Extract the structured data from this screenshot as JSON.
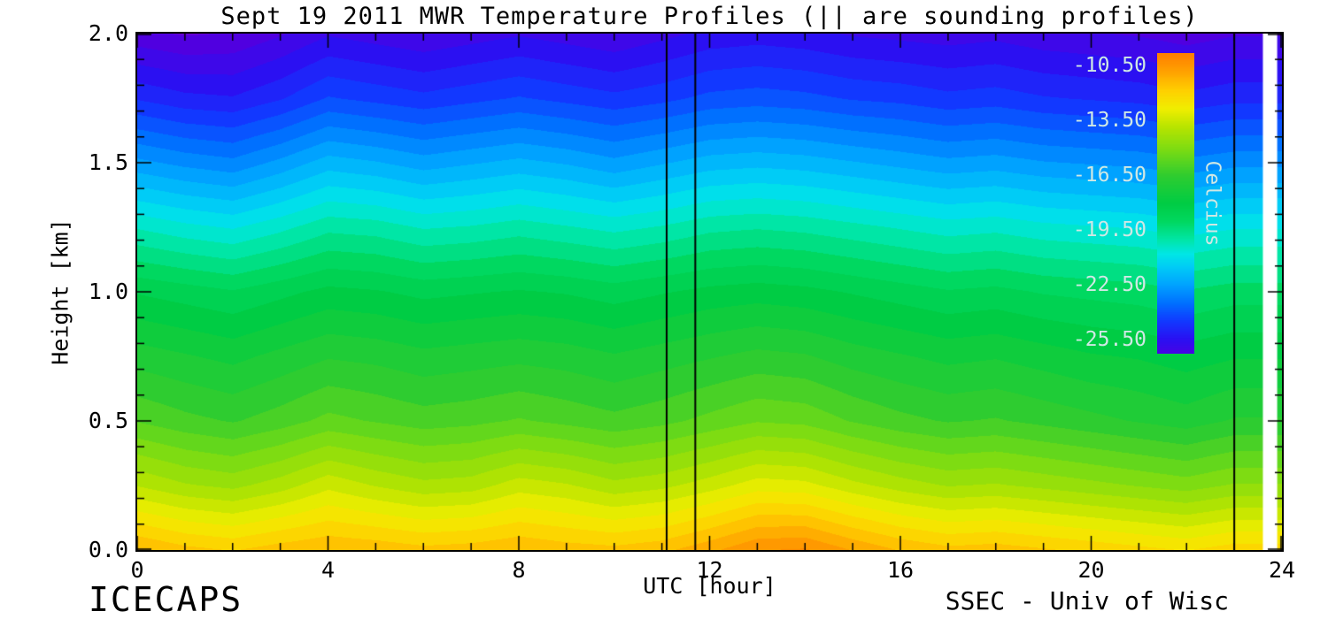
{
  "title": "Sept 19 2011 MWR Temperature Profiles (|| are sounding profiles)",
  "xlabel": "UTC [hour]",
  "ylabel": "Height [km]",
  "footer_left": "ICECAPS",
  "footer_right": "SSEC - Univ of Wisc",
  "axes": {
    "x_ticks": [
      0,
      4,
      8,
      12,
      16,
      20,
      24
    ],
    "x_minor_step": 1,
    "x_range": [
      0,
      24
    ],
    "y_ticks": [
      "0.0",
      "0.5",
      "1.0",
      "1.5",
      "2.0"
    ],
    "y_minor_step": 0.1,
    "y_range": [
      0,
      2
    ]
  },
  "sounding_hours": [
    11.1,
    11.7,
    23.0
  ],
  "no_data_band": {
    "from": 23.6,
    "to": 23.9
  },
  "colorbar": {
    "label": "Celcius",
    "tick_labels": [
      "-10.50",
      "-13.50",
      "-16.50",
      "-19.50",
      "-22.50",
      "-25.50"
    ],
    "min": -26.25,
    "max": -9.75,
    "text_color": "#cfe8e4"
  },
  "chart_data": {
    "type": "heatmap",
    "title": "Sept 19 2011 MWR Temperature Profiles (|| are sounding profiles)",
    "xlabel": "UTC [hour]",
    "ylabel": "Height [km]",
    "units": "Celsius",
    "band_step": 0.5,
    "x_hours": [
      0,
      1,
      2,
      3,
      4,
      5,
      6,
      7,
      8,
      9,
      10,
      11,
      12,
      13,
      14,
      15,
      16,
      17,
      18,
      19,
      20,
      21,
      22,
      23,
      24
    ],
    "heights_km": [
      0.0,
      0.25,
      0.5,
      0.75,
      1.0,
      1.25,
      1.5,
      1.75,
      2.0
    ],
    "grid": [
      [
        -11.2,
        -11.6,
        -11.8,
        -11.5,
        -11.3,
        -11.4,
        -11.6,
        -11.5,
        -11.3,
        -11.5,
        -11.6,
        -11.4,
        -10.9,
        -10.3,
        -10.2,
        -10.8,
        -11.3,
        -11.6,
        -11.5,
        -11.7,
        -11.9,
        -12.1,
        -12.3,
        -12.0,
        -12.0
      ],
      [
        -13.8,
        -14.2,
        -14.4,
        -14.0,
        -13.4,
        -13.8,
        -14.1,
        -14.0,
        -13.5,
        -13.7,
        -14.1,
        -13.9,
        -13.5,
        -13.0,
        -13.1,
        -13.6,
        -14.0,
        -14.3,
        -14.2,
        -14.4,
        -14.6,
        -14.8,
        -15.0,
        -14.7,
        -14.7
      ],
      [
        -15.8,
        -16.1,
        -16.3,
        -16.0,
        -15.6,
        -15.8,
        -16.0,
        -15.9,
        -15.7,
        -15.9,
        -16.1,
        -15.9,
        -15.6,
        -15.3,
        -15.4,
        -15.8,
        -16.1,
        -16.3,
        -16.2,
        -16.4,
        -16.6,
        -16.8,
        -17.0,
        -16.7,
        -16.7
      ],
      [
        -17.0,
        -17.2,
        -17.4,
        -17.1,
        -16.8,
        -16.9,
        -17.1,
        -17.0,
        -16.9,
        -17.0,
        -17.2,
        -17.0,
        -16.8,
        -16.6,
        -16.7,
        -17.0,
        -17.2,
        -17.4,
        -17.3,
        -17.5,
        -17.7,
        -17.8,
        -18.0,
        -17.8,
        -17.8
      ],
      [
        -18.3,
        -18.5,
        -18.7,
        -18.4,
        -18.1,
        -18.2,
        -18.4,
        -18.3,
        -18.2,
        -18.3,
        -18.5,
        -18.3,
        -18.1,
        -18.0,
        -18.1,
        -18.3,
        -18.5,
        -18.7,
        -18.6,
        -18.8,
        -18.9,
        -19.0,
        -19.2,
        -19.0,
        -19.0
      ],
      [
        -20.3,
        -20.6,
        -20.8,
        -20.4,
        -19.9,
        -20.0,
        -20.3,
        -20.2,
        -20.0,
        -20.2,
        -20.4,
        -20.2,
        -19.9,
        -19.8,
        -19.9,
        -20.1,
        -20.3,
        -20.5,
        -20.4,
        -20.6,
        -20.7,
        -20.8,
        -21.0,
        -20.8,
        -20.8
      ],
      [
        -22.6,
        -22.9,
        -23.1,
        -22.6,
        -22.0,
        -22.2,
        -22.5,
        -22.3,
        -22.1,
        -22.3,
        -22.6,
        -22.3,
        -22.0,
        -21.9,
        -22.0,
        -22.2,
        -22.4,
        -22.6,
        -22.5,
        -22.7,
        -22.8,
        -22.9,
        -23.1,
        -22.9,
        -22.9
      ],
      [
        -24.8,
        -25.1,
        -25.2,
        -24.8,
        -24.2,
        -24.4,
        -24.6,
        -24.4,
        -24.2,
        -24.4,
        -24.6,
        -24.4,
        -24.1,
        -24.0,
        -24.1,
        -24.3,
        -24.4,
        -24.6,
        -24.5,
        -24.7,
        -24.8,
        -24.9,
        -25.1,
        -24.9,
        -24.9
      ],
      [
        -26.6,
        -26.8,
        -26.7,
        -26.3,
        -25.8,
        -26.0,
        -26.2,
        -26.0,
        -25.8,
        -26.0,
        -26.2,
        -25.9,
        -25.6,
        -25.5,
        -25.6,
        -25.8,
        -25.9,
        -26.0,
        -25.9,
        -26.1,
        -26.2,
        -26.3,
        -26.5,
        -26.3,
        -26.3
      ]
    ],
    "colormap_stops": [
      {
        "v": -27.5,
        "c": "#7a00c8"
      },
      {
        "v": -26.5,
        "c": "#5000e0"
      },
      {
        "v": -25.5,
        "c": "#2b10f2"
      },
      {
        "v": -24.5,
        "c": "#1238ff"
      },
      {
        "v": -23.5,
        "c": "#0070ff"
      },
      {
        "v": -22.5,
        "c": "#00a2ff"
      },
      {
        "v": -21.5,
        "c": "#00ccf6"
      },
      {
        "v": -20.8,
        "c": "#00e6e6"
      },
      {
        "v": -20.0,
        "c": "#00e6a6"
      },
      {
        "v": -19.0,
        "c": "#00d860"
      },
      {
        "v": -18.0,
        "c": "#00cc44"
      },
      {
        "v": -16.5,
        "c": "#2ecc30"
      },
      {
        "v": -15.0,
        "c": "#7edc12"
      },
      {
        "v": -13.8,
        "c": "#b8e400"
      },
      {
        "v": -12.8,
        "c": "#f0ee00"
      },
      {
        "v": -11.8,
        "c": "#ffd000"
      },
      {
        "v": -10.8,
        "c": "#ffa400"
      },
      {
        "v": -9.8,
        "c": "#ff8000"
      }
    ],
    "legend_position": "inside-top-right",
    "grid_lines": false
  }
}
